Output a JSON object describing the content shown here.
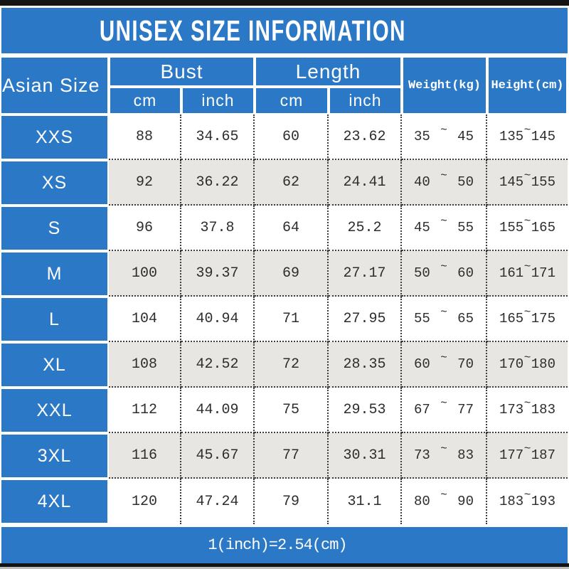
{
  "title": "UNISEX SIZE INFORMATION",
  "colors": {
    "primary_blue": "#2a78c6",
    "row_alt_gray": "#e8e6e3",
    "bar_black": "#141414",
    "data_text": "#2d2d2d"
  },
  "table": {
    "header": {
      "size_col": "Asian Size",
      "bust": "Bust",
      "length": "Length",
      "weight": "Weight(kg)",
      "height": "Height(cm)",
      "cm": "cm",
      "inch": "inch"
    },
    "tilde": "~",
    "rows": [
      {
        "size": "XXS",
        "bust_cm": "88",
        "bust_inch": "34.65",
        "length_cm": "60",
        "length_inch": "23.62",
        "weight_min": "35",
        "weight_max": "45",
        "height_min": "135",
        "height_max": "145"
      },
      {
        "size": "XS",
        "bust_cm": "92",
        "bust_inch": "36.22",
        "length_cm": "62",
        "length_inch": "24.41",
        "weight_min": "40",
        "weight_max": "50",
        "height_min": "145",
        "height_max": "155"
      },
      {
        "size": "S",
        "bust_cm": "96",
        "bust_inch": "37.8",
        "length_cm": "64",
        "length_inch": "25.2",
        "weight_min": "45",
        "weight_max": "55",
        "height_min": "155",
        "height_max": "165"
      },
      {
        "size": "M",
        "bust_cm": "100",
        "bust_inch": "39.37",
        "length_cm": "69",
        "length_inch": "27.17",
        "weight_min": "50",
        "weight_max": "60",
        "height_min": "161",
        "height_max": "171"
      },
      {
        "size": "L",
        "bust_cm": "104",
        "bust_inch": "40.94",
        "length_cm": "71",
        "length_inch": "27.95",
        "weight_min": "55",
        "weight_max": "65",
        "height_min": "165",
        "height_max": "175"
      },
      {
        "size": "XL",
        "bust_cm": "108",
        "bust_inch": "42.52",
        "length_cm": "72",
        "length_inch": "28.35",
        "weight_min": "60",
        "weight_max": "70",
        "height_min": "170",
        "height_max": "180"
      },
      {
        "size": "XXL",
        "bust_cm": "112",
        "bust_inch": "44.09",
        "length_cm": "75",
        "length_inch": "29.53",
        "weight_min": "67",
        "weight_max": "77",
        "height_min": "173",
        "height_max": "183"
      },
      {
        "size": "3XL",
        "bust_cm": "116",
        "bust_inch": "45.67",
        "length_cm": "77",
        "length_inch": "30.31",
        "weight_min": "73",
        "weight_max": "83",
        "height_min": "177",
        "height_max": "187"
      },
      {
        "size": "4XL",
        "bust_cm": "120",
        "bust_inch": "47.24",
        "length_cm": "79",
        "length_inch": "31.1",
        "weight_min": "80",
        "weight_max": "90",
        "height_min": "183",
        "height_max": "193"
      }
    ]
  },
  "footer": {
    "conversion_note": "1(inch)=2.54(cm)"
  }
}
